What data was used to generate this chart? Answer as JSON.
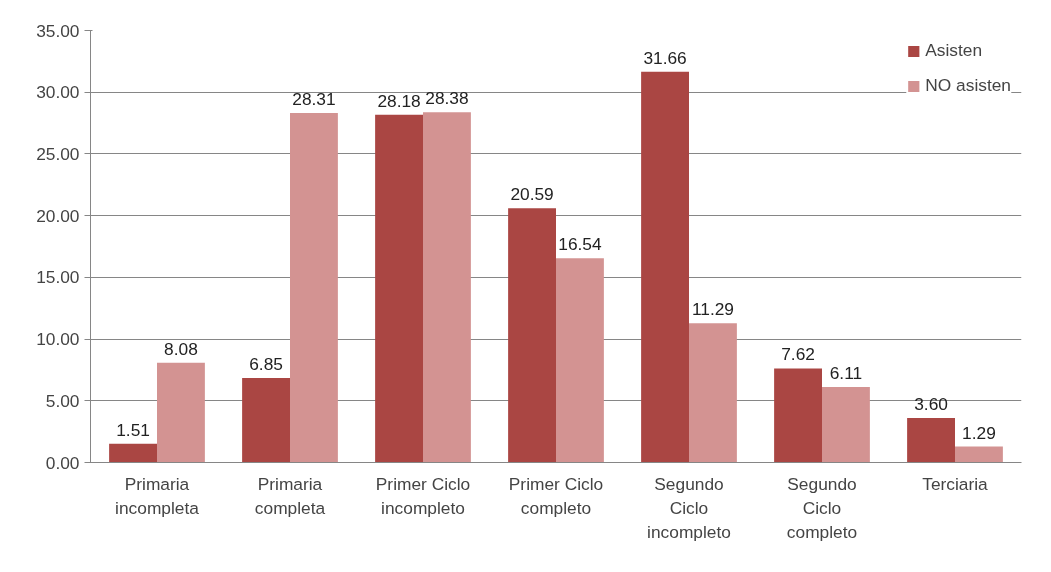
{
  "chart_data": {
    "type": "bar",
    "categories": [
      "Primaria\nincompleta",
      "Primaria\ncompleta",
      "Primer Ciclo\nincompleto",
      "Primer Ciclo\ncompleto",
      "Segundo\nCiclo\nincompleto",
      "Segundo\nCiclo\ncompleto",
      "Terciaria"
    ],
    "series": [
      {
        "name": "Asisten",
        "color": "#aa4643",
        "values": [
          1.51,
          6.85,
          28.18,
          20.59,
          31.66,
          7.62,
          3.6
        ],
        "value_labels": [
          "1.51",
          "6.85",
          "28.18",
          "20.59",
          "31.66",
          "7.62",
          "3.60"
        ]
      },
      {
        "name": "NO asisten",
        "color": "#d39392",
        "values": [
          8.08,
          28.31,
          28.38,
          16.54,
          11.29,
          6.11,
          1.29
        ],
        "value_labels": [
          "8.08",
          "28.31",
          "28.38",
          "16.54",
          "11.29",
          "6.11",
          "1.29"
        ]
      }
    ],
    "ylim": [
      0,
      35
    ],
    "yticks": [
      {
        "value": 0,
        "label": "0.00"
      },
      {
        "value": 5,
        "label": "5.00"
      },
      {
        "value": 10,
        "label": "10.00"
      },
      {
        "value": 15,
        "label": "15.00"
      },
      {
        "value": 20,
        "label": "20.00"
      },
      {
        "value": 25,
        "label": "25.00"
      },
      {
        "value": 30,
        "label": "30.00"
      },
      {
        "value": 35,
        "label": "35.00"
      }
    ],
    "grid": "y",
    "legend": "top right"
  }
}
